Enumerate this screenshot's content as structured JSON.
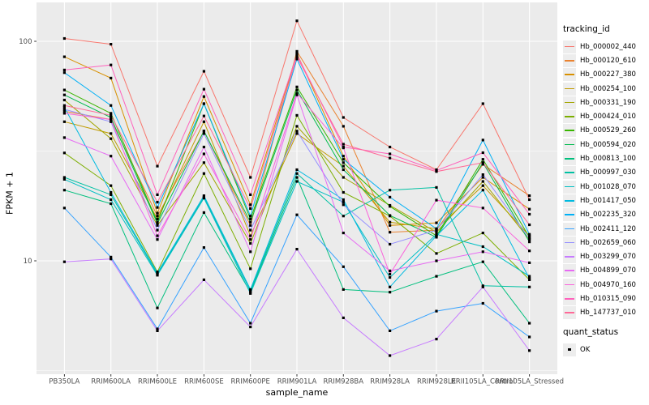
{
  "figure": {
    "background": "#FFFFFF",
    "panel_bg": "#EBEBEB",
    "grid_color": "#FFFFFF",
    "axis_text_color": "#4D4D4D"
  },
  "axes": {
    "y_title": "FPKM + 1",
    "x_title": "sample_name"
  },
  "legend": {
    "tracking_title": "tracking_id",
    "quant_title": "quant_status",
    "quant_items": [
      {
        "label": "OK",
        "marker": "black-square"
      }
    ]
  },
  "chart_data": {
    "type": "line",
    "title": "",
    "xlabel": "sample_name",
    "ylabel": "FPKM + 1",
    "y_scale": "log10",
    "ylim": [
      3,
      150
    ],
    "grid": true,
    "legend_position": "right",
    "marker": {
      "shape": "square",
      "color": "#000000",
      "size": 3.2
    },
    "y_ticks": [
      {
        "value": 10,
        "label": "10"
      },
      {
        "value": 100,
        "label": "100"
      }
    ],
    "y_major_gridlines": [
      10,
      100
    ],
    "y_minor_gridlines": [
      3.162,
      31.62
    ],
    "categories": [
      "PB350LA",
      "RRIM600LA",
      "RRIM600LE",
      "RRIM600SE",
      "RRIM600PE",
      "RRIM901LA",
      "RRIM928BA",
      "RRIM928LA",
      "RRIM928LE",
      "RRII105LA_Control",
      "RRII105LA_Stressed"
    ],
    "series": [
      {
        "name": "Hb_000002_440",
        "color": "#F8766D",
        "values": [
          103,
          97,
          27,
          73,
          24,
          124,
          45,
          33,
          26,
          52,
          19
        ]
      },
      {
        "name": "Hb_000120_610",
        "color": "#EA8331",
        "values": [
          48,
          44,
          16,
          39,
          14.5,
          90,
          41,
          13.5,
          13.8,
          27.5,
          19.8
        ]
      },
      {
        "name": "Hb_000227_380",
        "color": "#D89000",
        "values": [
          85,
          68,
          16.5,
          56,
          18,
          88,
          30,
          14.5,
          14.9,
          24,
          17.2
        ]
      },
      {
        "name": "Hb_000254_100",
        "color": "#C09B00",
        "values": [
          43,
          38,
          15.5,
          43,
          13,
          38,
          27,
          15,
          14,
          22,
          13
        ]
      },
      {
        "name": "Hb_000331_190",
        "color": "#A3A500",
        "values": [
          54,
          36,
          14.5,
          28,
          12,
          41,
          24,
          17.9,
          13.5,
          23,
          12.5
        ]
      },
      {
        "name": "Hb_000424_010",
        "color": "#7CAE00",
        "values": [
          31,
          22,
          8.9,
          25,
          9.2,
          46,
          20.5,
          16,
          10.8,
          13.4,
          8.2
        ]
      },
      {
        "name": "Hb_000529_260",
        "color": "#39B600",
        "values": [
          60,
          47,
          15,
          52,
          15.5,
          62,
          28,
          17.7,
          13,
          29,
          12.8
        ]
      },
      {
        "name": "Hb_000594_020",
        "color": "#00BB4E",
        "values": [
          57,
          45,
          14.8,
          39,
          15,
          60,
          26,
          16.1,
          12.8,
          28,
          12.2
        ]
      },
      {
        "name": "Hb_000813_100",
        "color": "#00BF7D",
        "values": [
          21,
          18.2,
          6.1,
          16.6,
          7.2,
          24,
          7.4,
          7.2,
          8.5,
          9.9,
          5.2
        ]
      },
      {
        "name": "Hb_000997_030",
        "color": "#00C1A3",
        "values": [
          24,
          20,
          8.7,
          19.5,
          7.3,
          25,
          16,
          21,
          21.6,
          7.7,
          7.6
        ]
      },
      {
        "name": "Hb_001028_070",
        "color": "#00BFC4",
        "values": [
          23.5,
          19,
          8.6,
          19.3,
          7.1,
          23,
          18.5,
          8.4,
          13.2,
          11.6,
          8.5
        ]
      },
      {
        "name": "Hb_001417_050",
        "color": "#00BAE0",
        "values": [
          50,
          20.5,
          8.8,
          19.8,
          7.4,
          26,
          19,
          7.6,
          13,
          21,
          8.3
        ]
      },
      {
        "name": "Hb_002235_320",
        "color": "#00B0F6",
        "values": [
          72,
          51,
          17.5,
          52,
          16,
          83,
          29,
          19.5,
          14,
          35.5,
          13.2
        ]
      },
      {
        "name": "Hb_002411_120",
        "color": "#35A2FF",
        "values": [
          17.4,
          10.4,
          4.9,
          11.5,
          5.2,
          16.2,
          9.4,
          4.8,
          5.9,
          6.4,
          4.5
        ]
      },
      {
        "name": "Hb_002659_060",
        "color": "#9590FF",
        "values": [
          49,
          43,
          13.8,
          38,
          13.8,
          39,
          18,
          11.9,
          13.8,
          24.7,
          12.6
        ]
      },
      {
        "name": "Hb_003299_070",
        "color": "#C77CFF",
        "values": [
          9.9,
          10.2,
          4.8,
          8.2,
          5,
          11.3,
          5.5,
          3.7,
          4.4,
          7.6,
          3.9
        ]
      },
      {
        "name": "Hb_004899_070",
        "color": "#E76BF3",
        "values": [
          36.4,
          30,
          12.5,
          33,
          11,
          57,
          13.4,
          9,
          10,
          11,
          9.8
        ]
      },
      {
        "name": "Hb_004970_160",
        "color": "#FA62DB",
        "values": [
          47,
          44,
          13,
          30.7,
          12.5,
          58,
          32.7,
          8.7,
          18.9,
          17.4,
          11.1
        ]
      },
      {
        "name": "Hb_010315_090",
        "color": "#FF62BC",
        "values": [
          74,
          78,
          20,
          60.5,
          20,
          87,
          33,
          30.7,
          25.8,
          31.1,
          16.3
        ]
      },
      {
        "name": "Hb_147737_010",
        "color": "#FF6A98",
        "values": [
          51,
          46,
          18.5,
          45.7,
          17.3,
          85,
          34,
          29.4,
          25.5,
          28,
          14.6
        ]
      }
    ]
  }
}
